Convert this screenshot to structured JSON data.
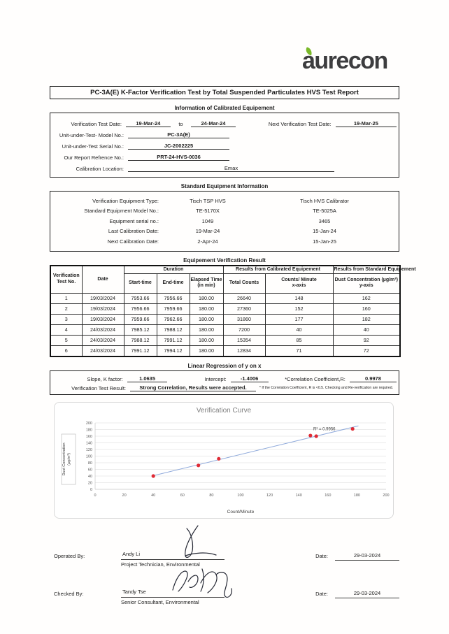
{
  "logo": {
    "text": "aurecon",
    "text_color": "#3d3d3f",
    "leaf_color": "#7ab929"
  },
  "title": "PC-3A(E) K-Factor Verification Test by Total Suspended Particulates HVS Test Report",
  "calibrated_info": {
    "heading": "Information of Calibrated Equipement",
    "test_date_label": "Verification Test Date:",
    "test_date_from": "19-Mar-24",
    "to_label": "to",
    "test_date_to": "24-Mar-24",
    "next_date_label": "Next Verification Test Date:",
    "next_date": "19-Mar-25",
    "rows": [
      {
        "label": "Unit-under-Test- Model No.:",
        "value": "PC-3A(E)"
      },
      {
        "label": "Unit-under-Test Serial No.:",
        "value": "JC-2002225"
      },
      {
        "label": "Our Report Refrence No.:",
        "value": "PRT-24-HVS-0036"
      },
      {
        "label": "Calibration Location:",
        "value": "Emax"
      }
    ]
  },
  "standard_info": {
    "heading": "Standard Equipment Information",
    "rows": [
      {
        "label": "Verification Equipment Type:",
        "col1": "Tisch TSP HVS",
        "col2": "Tisch HVS Calibrator"
      },
      {
        "label": "Standard Equipment Model No.:",
        "col1": "TE-5170X",
        "col2": "TE-5025A"
      },
      {
        "label": "Equipment serial no.:",
        "col1": "1049",
        "col2": "3465"
      },
      {
        "label": "Last Calibration Date:",
        "col1": "19-Mar-24",
        "col2": "15-Jan-24"
      },
      {
        "label": "Next Calibration Date:",
        "col1": "2-Apr-24",
        "col2": "15-Jan-25"
      }
    ]
  },
  "result_table": {
    "heading": "Equipement Verification Result",
    "col_test_no": "Verification Test No.",
    "col_date": "Date",
    "group_duration": "Duration",
    "group_calibrated": "Results from Calibrated Equipement",
    "group_standard": "Results from Standard Equipement",
    "col_start": "Start-time",
    "col_end": "End-time",
    "col_elapsed": {
      "line1": "Elapsed Time",
      "line2": "(in min)"
    },
    "col_total": "Total Counts",
    "col_cpm": {
      "line1": "Counts/ Minute",
      "line2": "x-axis"
    },
    "col_dust": {
      "line1": "Dust Concentration (µg/m³)",
      "line2": "y-axis"
    },
    "rows": [
      [
        "1",
        "19/03/2024",
        "7953.66",
        "7956.66",
        "180.00",
        "26640",
        "148",
        "162"
      ],
      [
        "2",
        "19/03/2024",
        "7956.66",
        "7959.66",
        "180.00",
        "27360",
        "152",
        "160"
      ],
      [
        "3",
        "19/03/2024",
        "7959.66",
        "7962.66",
        "180.00",
        "31860",
        "177",
        "182"
      ],
      [
        "4",
        "24/03/2024",
        "7985.12",
        "7988.12",
        "180.00",
        "7200",
        "40",
        "40"
      ],
      [
        "5",
        "24/03/2024",
        "7988.12",
        "7991.12",
        "180.00",
        "15354",
        "85",
        "92"
      ],
      [
        "6",
        "24/03/2024",
        "7991.12",
        "7994.12",
        "180.00",
        "12834",
        "71",
        "72"
      ]
    ]
  },
  "regression": {
    "heading": "Linear Regression of y on x",
    "slope_label": "Slope, K factor:",
    "slope": "1.0635",
    "intercept_label": "Intercept:",
    "intercept": "-1.4006",
    "corr_label": "*Correlation Coefficient,R:",
    "corr": "0.9978",
    "result_label": "Verification Test Result:",
    "result": "Strong Correlation, Results were accepted.",
    "footnote": "* If the Correlation Coefficient, R is <0.5. Checking and Re-verification are required."
  },
  "chart_data": {
    "type": "scatter",
    "title": "Verification Curve",
    "xlabel": "Count/Minute",
    "ylabel": "Dust Concentration (µg/m³)",
    "ylabel_lines": [
      "Dust Concentration",
      "(µg/m³)"
    ],
    "xlim": [
      0,
      200
    ],
    "ylim": [
      0,
      200
    ],
    "xtick_step": 20,
    "ytick_step": 20,
    "grid": true,
    "legend": "none",
    "points": [
      [
        148,
        162
      ],
      [
        152,
        160
      ],
      [
        177,
        182
      ],
      [
        40,
        40
      ],
      [
        85,
        92
      ],
      [
        71,
        72
      ]
    ],
    "trendline": {
      "slope": 1.0635,
      "intercept": -1.4006,
      "x_start": 40,
      "x_end": 181
    },
    "r_squared_label": "R² = 0.9956",
    "marker_color": "#e02b35",
    "line_color": "#8ea9db"
  },
  "signatures": [
    {
      "role_label": "Operated By:",
      "name": "Andy Li",
      "title": "Project Technician, Environmental",
      "date_label": "Date:",
      "date": "29-03-2024"
    },
    {
      "role_label": "Checked By:",
      "name": "Tandy Tse",
      "title": "Senior Consultant, Environmental",
      "date_label": "Date:",
      "date": "29-03-2024"
    }
  ]
}
